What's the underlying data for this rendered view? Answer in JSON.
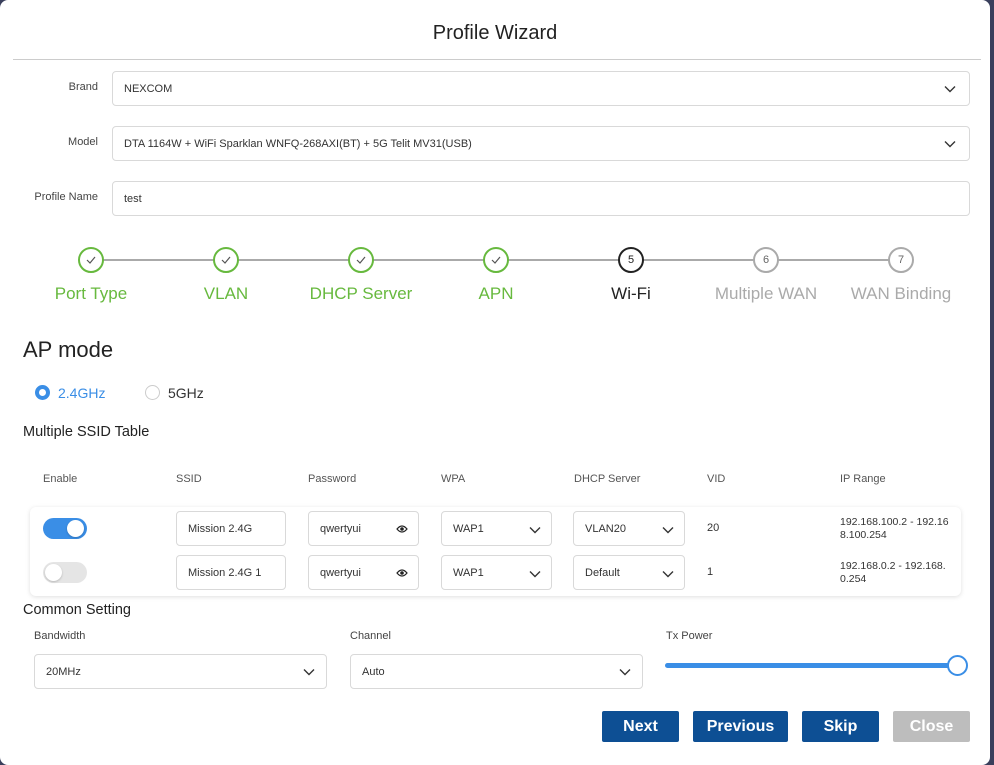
{
  "title": "Profile Wizard",
  "form": {
    "brand": {
      "label": "Brand",
      "value": "NEXCOM"
    },
    "model": {
      "label": "Model",
      "value": "DTA 1164W + WiFi Sparklan WNFQ-268AXI(BT) + 5G Telit MV31(USB)"
    },
    "profile_name": {
      "label": "Profile Name",
      "value": "test"
    }
  },
  "steps": [
    {
      "label": "Port Type",
      "state": "done"
    },
    {
      "label": "VLAN",
      "state": "done"
    },
    {
      "label": "DHCP Server",
      "state": "done"
    },
    {
      "label": "APN",
      "state": "done"
    },
    {
      "number": "5",
      "label": "Wi-Fi",
      "state": "current"
    },
    {
      "number": "6",
      "label": "Multiple WAN",
      "state": "pending"
    },
    {
      "number": "7",
      "label": "WAN Binding",
      "state": "pending"
    }
  ],
  "ap_mode": {
    "title": "AP mode",
    "options": [
      "2.4GHz",
      "5GHz"
    ],
    "selected": 0
  },
  "ssid_table": {
    "title": "Multiple SSID Table",
    "columns": [
      "Enable",
      "SSID",
      "Password",
      "WPA",
      "DHCP Server",
      "VID",
      "IP Range"
    ],
    "rows": [
      {
        "enabled": true,
        "ssid": "Mission 2.4G",
        "password": "qwertyui",
        "wpa": "WAP1",
        "dhcp_server": "VLAN20",
        "vid": "20",
        "ip_range": "192.168.100.2 - 192.168.100.254"
      },
      {
        "enabled": false,
        "ssid": "Mission 2.4G 1",
        "password": "qwertyui",
        "wpa": "WAP1",
        "dhcp_server": "Default",
        "vid": "1",
        "ip_range": "192.168.0.2 - 192.168.0.254"
      }
    ]
  },
  "common_setting": {
    "title": "Common Setting",
    "bandwidth": {
      "label": "Bandwidth",
      "value": "20MHz"
    },
    "channel": {
      "label": "Channel",
      "value": "Auto"
    },
    "tx_power": {
      "label": "Tx Power"
    }
  },
  "buttons": [
    {
      "label": "Next",
      "enabled": true
    },
    {
      "label": "Previous",
      "enabled": true
    },
    {
      "label": "Skip",
      "enabled": true
    },
    {
      "label": "Close",
      "enabled": false
    }
  ]
}
